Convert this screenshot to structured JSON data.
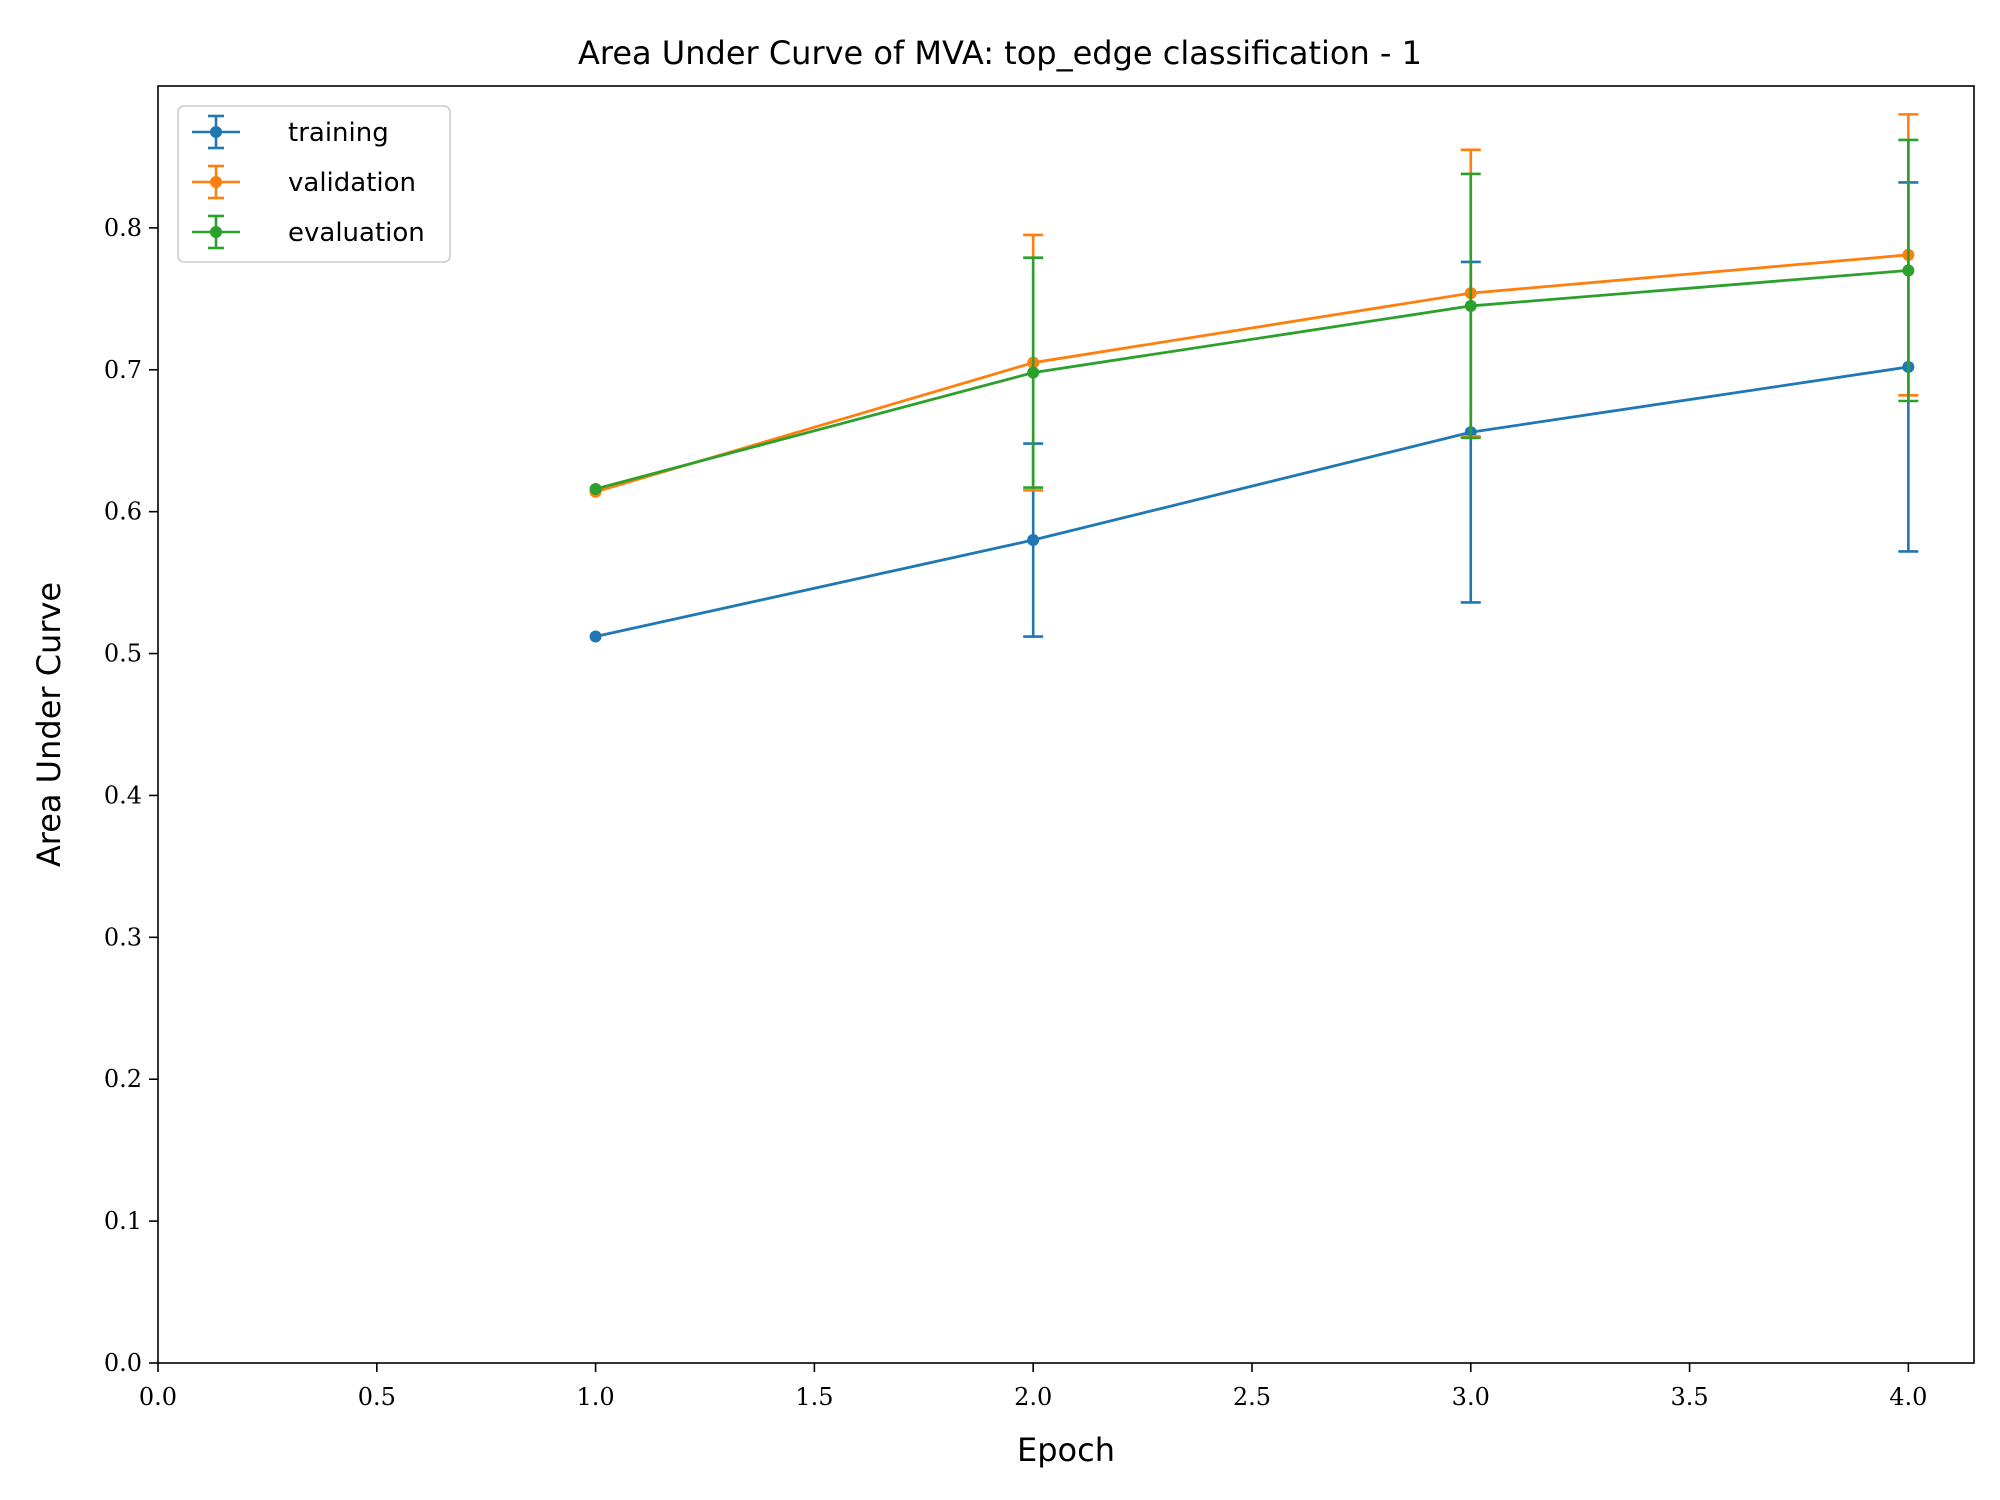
{
  "chart_data": {
    "type": "line",
    "title": "Area Under Curve of MVA: top_edge classification - 1",
    "xlabel": "Epoch",
    "ylabel": "Area Under Curve",
    "xlim": [
      0.0,
      4.15
    ],
    "ylim": [
      0.0,
      0.9
    ],
    "xticks": [
      "0.0",
      "0.5",
      "1.0",
      "1.5",
      "2.0",
      "2.5",
      "3.0",
      "3.5",
      "4.0"
    ],
    "yticks": [
      "0.0",
      "0.1",
      "0.2",
      "0.3",
      "0.4",
      "0.5",
      "0.6",
      "0.7",
      "0.8"
    ],
    "grid": false,
    "legend": "top-left",
    "x": [
      1,
      2,
      3,
      4
    ],
    "series": [
      {
        "name": "training",
        "color": "#1f77b4",
        "values": [
          0.512,
          0.58,
          0.656,
          0.702
        ],
        "yerr": [
          0.0,
          0.068,
          0.12,
          0.13
        ]
      },
      {
        "name": "validation",
        "color": "#ff7f0e",
        "values": [
          0.614,
          0.705,
          0.754,
          0.781
        ],
        "yerr": [
          0.0,
          0.09,
          0.101,
          0.099
        ]
      },
      {
        "name": "evaluation",
        "color": "#2ca02c",
        "values": [
          0.616,
          0.698,
          0.745,
          0.77
        ],
        "yerr": [
          0.0,
          0.081,
          0.093,
          0.092
        ]
      }
    ]
  }
}
